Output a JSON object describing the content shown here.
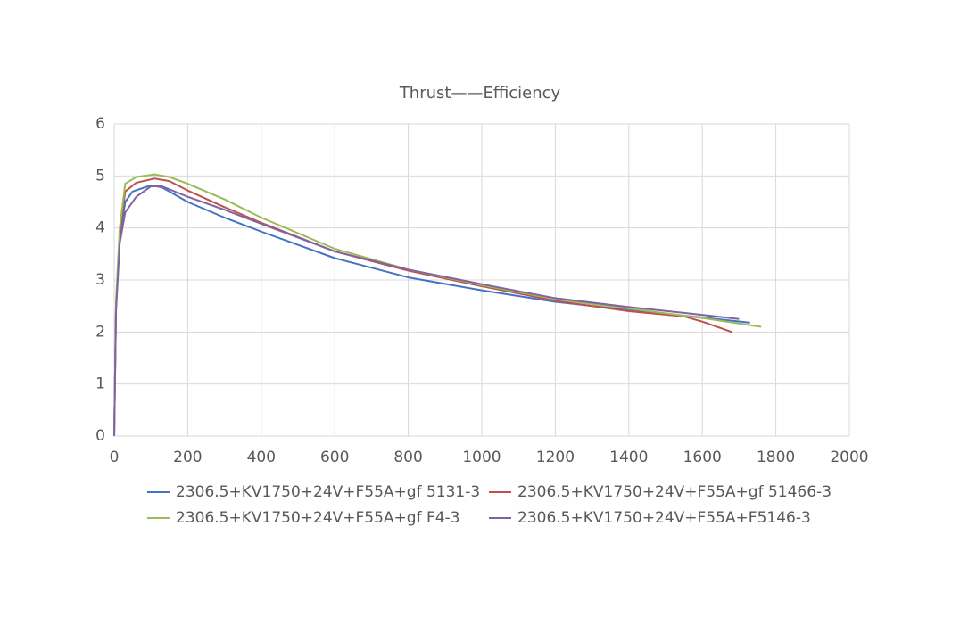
{
  "chart_data": {
    "type": "line",
    "title": "Thrust——Efficiency",
    "xlim": [
      0,
      2000
    ],
    "xticks": [
      0,
      200,
      400,
      600,
      800,
      1000,
      1200,
      1400,
      1600,
      1800,
      2000
    ],
    "ylim": [
      0,
      6
    ],
    "yticks": [
      0,
      1,
      2,
      3,
      4,
      5,
      6
    ],
    "grid": true,
    "legend": "bottom",
    "series": [
      {
        "name": "2306.5+KV1750+24V+F55A+gf 5131-3",
        "color": "#4472c4",
        "x": [
          0,
          5,
          15,
          30,
          50,
          100,
          130,
          200,
          300,
          400,
          600,
          800,
          1000,
          1200,
          1400,
          1600,
          1730
        ],
        "values": [
          0,
          2.5,
          3.8,
          4.5,
          4.7,
          4.82,
          4.78,
          4.5,
          4.2,
          3.93,
          3.42,
          3.05,
          2.8,
          2.58,
          2.42,
          2.28,
          2.18
        ]
      },
      {
        "name": "2306.5+KV1750+24V+F55A+gf 51466-3",
        "color": "#c0504d",
        "x": [
          0,
          5,
          15,
          30,
          60,
          110,
          150,
          200,
          300,
          400,
          600,
          800,
          1000,
          1200,
          1400,
          1550,
          1600,
          1680
        ],
        "values": [
          0,
          2.5,
          3.9,
          4.7,
          4.87,
          4.95,
          4.9,
          4.72,
          4.4,
          4.1,
          3.55,
          3.18,
          2.88,
          2.6,
          2.4,
          2.3,
          2.2,
          2.0
        ]
      },
      {
        "name": "2306.5+KV1750+24V+F55A+gf F4-3",
        "color": "#9bbb59",
        "x": [
          0,
          5,
          15,
          30,
          60,
          110,
          150,
          200,
          300,
          400,
          600,
          800,
          1000,
          1200,
          1400,
          1600,
          1760
        ],
        "values": [
          0,
          2.6,
          4.0,
          4.85,
          4.98,
          5.03,
          4.98,
          4.85,
          4.55,
          4.2,
          3.6,
          3.2,
          2.9,
          2.63,
          2.45,
          2.27,
          2.1
        ]
      },
      {
        "name": "2306.5+KV1750+24V+F55A+F5146-3",
        "color": "#8064a2",
        "x": [
          0,
          5,
          15,
          30,
          60,
          100,
          130,
          200,
          300,
          400,
          600,
          800,
          1000,
          1200,
          1400,
          1600,
          1700
        ],
        "values": [
          0,
          2.4,
          3.7,
          4.3,
          4.6,
          4.8,
          4.8,
          4.6,
          4.35,
          4.08,
          3.55,
          3.2,
          2.92,
          2.65,
          2.48,
          2.33,
          2.25
        ]
      }
    ]
  }
}
